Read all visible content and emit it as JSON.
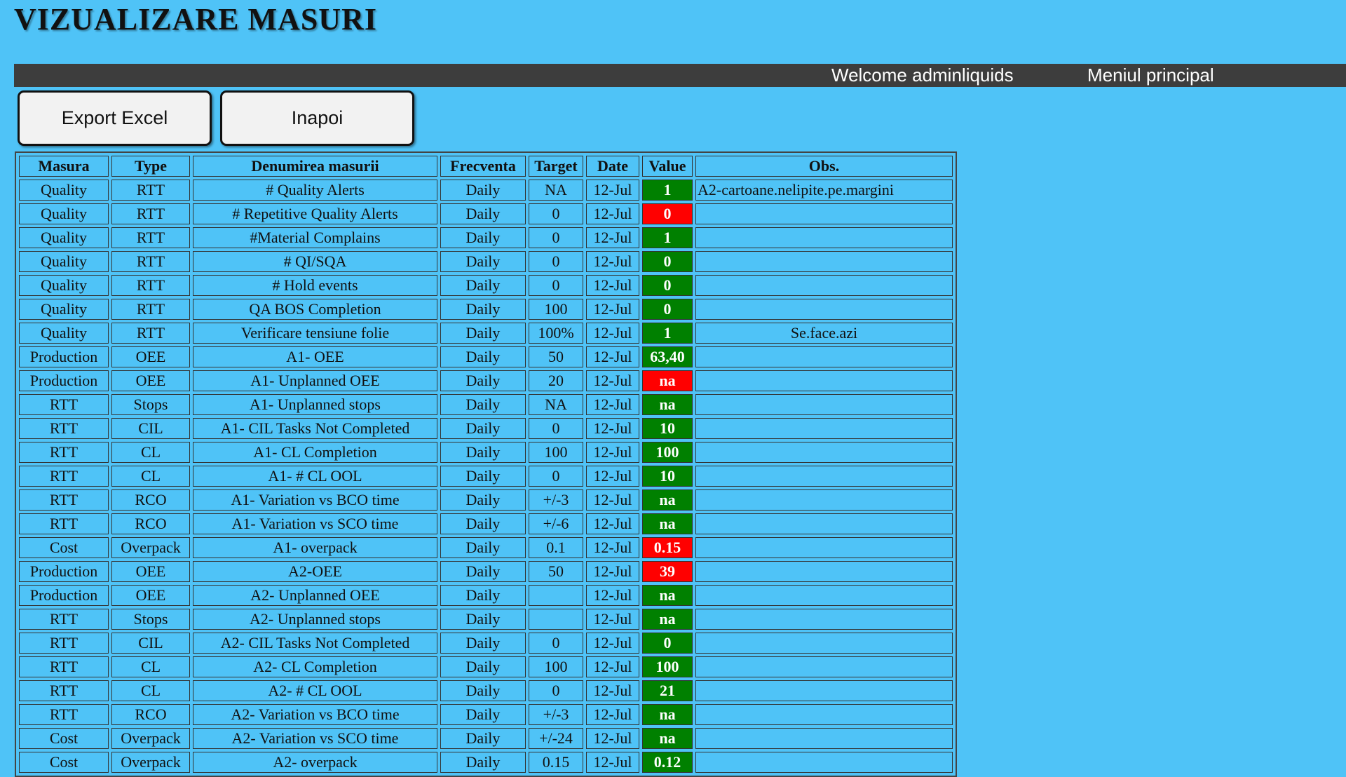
{
  "page": {
    "title": "VIZUALIZARE MASURI"
  },
  "nav": {
    "welcome": "Welcome adminliquids",
    "main_menu": "Meniul principal"
  },
  "buttons": {
    "export": "Export Excel",
    "back": "Inapoi"
  },
  "colors": {
    "background": "#4fc3f7",
    "navbar": "#3d3d3d",
    "value_ok": "#008000",
    "value_bad": "#ff0000"
  },
  "table": {
    "headers": [
      "Masura",
      "Type",
      "Denumirea masurii",
      "Frecventa",
      "Target",
      "Date",
      "Value",
      "Obs."
    ],
    "rows": [
      {
        "masura": "Quality",
        "type": "RTT",
        "name": "# Quality Alerts",
        "freq": "Daily",
        "target": "NA",
        "date": "12-Jul",
        "value": "1",
        "status": "green",
        "obs": "A2-cartoane.nelipite.pe.margini"
      },
      {
        "masura": "Quality",
        "type": "RTT",
        "name": "# Repetitive Quality Alerts",
        "freq": "Daily",
        "target": "0",
        "date": "12-Jul",
        "value": "0",
        "status": "red",
        "obs": ""
      },
      {
        "masura": "Quality",
        "type": "RTT",
        "name": "#Material Complains",
        "freq": "Daily",
        "target": "0",
        "date": "12-Jul",
        "value": "1",
        "status": "green",
        "obs": ""
      },
      {
        "masura": "Quality",
        "type": "RTT",
        "name": "# QI/SQA",
        "freq": "Daily",
        "target": "0",
        "date": "12-Jul",
        "value": "0",
        "status": "green",
        "obs": ""
      },
      {
        "masura": "Quality",
        "type": "RTT",
        "name": "# Hold events",
        "freq": "Daily",
        "target": "0",
        "date": "12-Jul",
        "value": "0",
        "status": "green",
        "obs": ""
      },
      {
        "masura": "Quality",
        "type": "RTT",
        "name": "QA BOS Completion",
        "freq": "Daily",
        "target": "100",
        "date": "12-Jul",
        "value": "0",
        "status": "green",
        "obs": ""
      },
      {
        "masura": "Quality",
        "type": "RTT",
        "name": "Verificare tensiune folie",
        "freq": "Daily",
        "target": "100%",
        "date": "12-Jul",
        "value": "1",
        "status": "green",
        "obs": "Se.face.azi"
      },
      {
        "masura": "Production",
        "type": "OEE",
        "name": "A1- OEE",
        "freq": "Daily",
        "target": "50",
        "date": "12-Jul",
        "value": "63,40",
        "status": "green",
        "obs": ""
      },
      {
        "masura": "Production",
        "type": "OEE",
        "name": "A1- Unplanned OEE",
        "freq": "Daily",
        "target": "20",
        "date": "12-Jul",
        "value": "na",
        "status": "red",
        "obs": ""
      },
      {
        "masura": "RTT",
        "type": "Stops",
        "name": "A1- Unplanned stops",
        "freq": "Daily",
        "target": "NA",
        "date": "12-Jul",
        "value": "na",
        "status": "green",
        "obs": ""
      },
      {
        "masura": "RTT",
        "type": "CIL",
        "name": "A1- CIL Tasks Not Completed",
        "freq": "Daily",
        "target": "0",
        "date": "12-Jul",
        "value": "10",
        "status": "green",
        "obs": ""
      },
      {
        "masura": "RTT",
        "type": "CL",
        "name": "A1- CL Completion",
        "freq": "Daily",
        "target": "100",
        "date": "12-Jul",
        "value": "100",
        "status": "green",
        "obs": ""
      },
      {
        "masura": "RTT",
        "type": "CL",
        "name": "A1- # CL OOL",
        "freq": "Daily",
        "target": "0",
        "date": "12-Jul",
        "value": "10",
        "status": "green",
        "obs": ""
      },
      {
        "masura": "RTT",
        "type": "RCO",
        "name": "A1- Variation vs BCO time",
        "freq": "Daily",
        "target": "+/-3",
        "date": "12-Jul",
        "value": "na",
        "status": "green",
        "obs": ""
      },
      {
        "masura": "RTT",
        "type": "RCO",
        "name": "A1- Variation vs SCO time",
        "freq": "Daily",
        "target": "+/-6",
        "date": "12-Jul",
        "value": "na",
        "status": "green",
        "obs": ""
      },
      {
        "masura": "Cost",
        "type": "Overpack",
        "name": "A1- overpack",
        "freq": "Daily",
        "target": "0.1",
        "date": "12-Jul",
        "value": "0.15",
        "status": "red",
        "obs": ""
      },
      {
        "masura": "Production",
        "type": "OEE",
        "name": "A2-OEE",
        "freq": "Daily",
        "target": "50",
        "date": "12-Jul",
        "value": "39",
        "status": "red",
        "obs": ""
      },
      {
        "masura": "Production",
        "type": "OEE",
        "name": "A2- Unplanned OEE",
        "freq": "Daily",
        "target": "",
        "date": "12-Jul",
        "value": "na",
        "status": "green",
        "obs": ""
      },
      {
        "masura": "RTT",
        "type": "Stops",
        "name": "A2- Unplanned stops",
        "freq": "Daily",
        "target": "",
        "date": "12-Jul",
        "value": "na",
        "status": "green",
        "obs": ""
      },
      {
        "masura": "RTT",
        "type": "CIL",
        "name": "A2- CIL Tasks Not Completed",
        "freq": "Daily",
        "target": "0",
        "date": "12-Jul",
        "value": "0",
        "status": "green",
        "obs": ""
      },
      {
        "masura": "RTT",
        "type": "CL",
        "name": "A2- CL Completion",
        "freq": "Daily",
        "target": "100",
        "date": "12-Jul",
        "value": "100",
        "status": "green",
        "obs": ""
      },
      {
        "masura": "RTT",
        "type": "CL",
        "name": "A2- # CL OOL",
        "freq": "Daily",
        "target": "0",
        "date": "12-Jul",
        "value": "21",
        "status": "green",
        "obs": ""
      },
      {
        "masura": "RTT",
        "type": "RCO",
        "name": "A2- Variation vs BCO time",
        "freq": "Daily",
        "target": "+/-3",
        "date": "12-Jul",
        "value": "na",
        "status": "green",
        "obs": ""
      },
      {
        "masura": "Cost",
        "type": "Overpack",
        "name": "A2- Variation vs SCO time",
        "freq": "Daily",
        "target": "+/-24",
        "date": "12-Jul",
        "value": "na",
        "status": "green",
        "obs": ""
      },
      {
        "masura": "Cost",
        "type": "Overpack",
        "name": "A2- overpack",
        "freq": "Daily",
        "target": "0.15",
        "date": "12-Jul",
        "value": "0.12",
        "status": "green",
        "obs": ""
      }
    ]
  }
}
